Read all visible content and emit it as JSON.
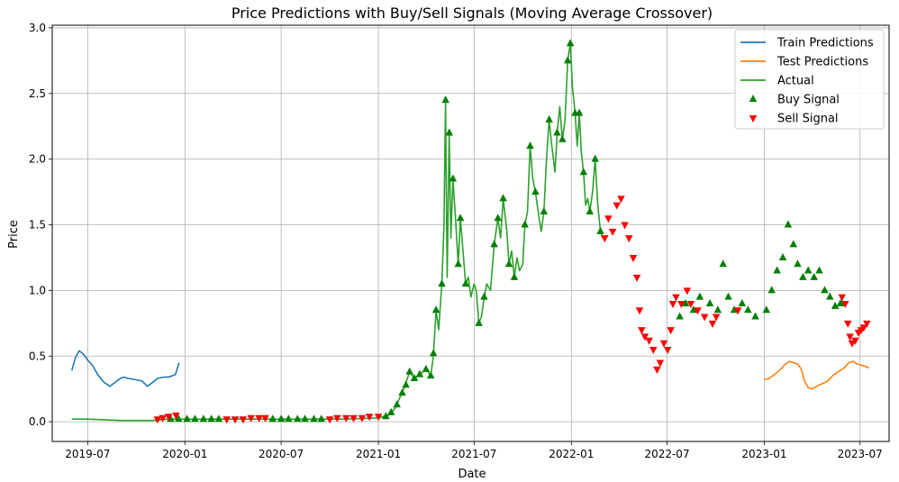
{
  "chart_data": {
    "type": "line",
    "title": "Price Predictions with Buy/Sell Signals (Moving Average Crossover)",
    "xlabel": "Date",
    "ylabel": "Price",
    "xlim": [
      "2019-04-25",
      "2023-08-25"
    ],
    "ylim": [
      -0.15,
      3.02
    ],
    "x_ticks": [
      "2019-07",
      "2020-01",
      "2020-07",
      "2021-01",
      "2021-07",
      "2022-01",
      "2022-07",
      "2023-01",
      "2023-07"
    ],
    "y_ticks": [
      "0.0",
      "0.5",
      "1.0",
      "1.5",
      "2.0",
      "2.5",
      "3.0"
    ],
    "grid": true,
    "legend_position": "top-right",
    "series": [
      {
        "name": "Train Predictions",
        "color": "#1f77b4",
        "points": [
          [
            "2019-06-01",
            0.39
          ],
          [
            "2019-06-08",
            0.49
          ],
          [
            "2019-06-15",
            0.54
          ],
          [
            "2019-06-22",
            0.52
          ],
          [
            "2019-07-01",
            0.47
          ],
          [
            "2019-07-10",
            0.43
          ],
          [
            "2019-07-20",
            0.36
          ],
          [
            "2019-08-01",
            0.3
          ],
          [
            "2019-08-12",
            0.27
          ],
          [
            "2019-08-22",
            0.3
          ],
          [
            "2019-09-01",
            0.33
          ],
          [
            "2019-09-08",
            0.34
          ],
          [
            "2019-09-15",
            0.33
          ],
          [
            "2019-10-01",
            0.32
          ],
          [
            "2019-10-12",
            0.31
          ],
          [
            "2019-10-22",
            0.27
          ],
          [
            "2019-11-01",
            0.3
          ],
          [
            "2019-11-10",
            0.33
          ],
          [
            "2019-11-22",
            0.34
          ],
          [
            "2019-12-01",
            0.34
          ],
          [
            "2019-12-08",
            0.35
          ],
          [
            "2019-12-14",
            0.36
          ],
          [
            "2019-12-21",
            0.45
          ]
        ]
      },
      {
        "name": "Test Predictions",
        "color": "#ff7f0e",
        "points": [
          [
            "2023-01-01",
            0.32
          ],
          [
            "2023-01-10",
            0.33
          ],
          [
            "2023-01-20",
            0.36
          ],
          [
            "2023-02-01",
            0.4
          ],
          [
            "2023-02-10",
            0.44
          ],
          [
            "2023-02-18",
            0.46
          ],
          [
            "2023-02-25",
            0.45
          ],
          [
            "2023-03-05",
            0.44
          ],
          [
            "2023-03-12",
            0.4
          ],
          [
            "2023-03-18",
            0.31
          ],
          [
            "2023-03-25",
            0.26
          ],
          [
            "2023-04-01",
            0.25
          ],
          [
            "2023-04-10",
            0.27
          ],
          [
            "2023-04-20",
            0.29
          ],
          [
            "2023-05-01",
            0.31
          ],
          [
            "2023-05-10",
            0.35
          ],
          [
            "2023-05-20",
            0.38
          ],
          [
            "2023-06-01",
            0.41
          ],
          [
            "2023-06-10",
            0.45
          ],
          [
            "2023-06-18",
            0.46
          ],
          [
            "2023-06-25",
            0.44
          ],
          [
            "2023-07-05",
            0.43
          ],
          [
            "2023-07-12",
            0.42
          ],
          [
            "2023-07-18",
            0.41
          ]
        ]
      },
      {
        "name": "Actual",
        "color": "#2ca02c",
        "points": [
          [
            "2019-06-01",
            0.02
          ],
          [
            "2019-07-01",
            0.02
          ],
          [
            "2019-09-01",
            0.01
          ],
          [
            "2019-11-01",
            0.01
          ],
          [
            "2019-12-01",
            0.02
          ],
          [
            "2020-03-01",
            0.02
          ],
          [
            "2020-07-01",
            0.02
          ],
          [
            "2020-11-01",
            0.02
          ],
          [
            "2021-01-01",
            0.03
          ],
          [
            "2021-01-20",
            0.05
          ],
          [
            "2021-02-01",
            0.1
          ],
          [
            "2021-02-10",
            0.18
          ],
          [
            "2021-02-20",
            0.27
          ],
          [
            "2021-03-01",
            0.38
          ],
          [
            "2021-03-10",
            0.33
          ],
          [
            "2021-03-20",
            0.36
          ],
          [
            "2021-04-01",
            0.4
          ],
          [
            "2021-04-10",
            0.35
          ],
          [
            "2021-04-15",
            0.5
          ],
          [
            "2021-04-20",
            0.85
          ],
          [
            "2021-04-25",
            0.7
          ],
          [
            "2021-05-01",
            1.05
          ],
          [
            "2021-05-05",
            1.5
          ],
          [
            "2021-05-08",
            2.45
          ],
          [
            "2021-05-11",
            1.1
          ],
          [
            "2021-05-15",
            2.2
          ],
          [
            "2021-05-18",
            1.4
          ],
          [
            "2021-05-22",
            1.85
          ],
          [
            "2021-05-26",
            1.6
          ],
          [
            "2021-06-01",
            1.2
          ],
          [
            "2021-06-05",
            1.55
          ],
          [
            "2021-06-10",
            1.3
          ],
          [
            "2021-06-15",
            1.05
          ],
          [
            "2021-06-20",
            1.1
          ],
          [
            "2021-06-25",
            0.95
          ],
          [
            "2021-07-01",
            1.05
          ],
          [
            "2021-07-05",
            1.0
          ],
          [
            "2021-07-10",
            0.75
          ],
          [
            "2021-07-15",
            0.8
          ],
          [
            "2021-07-20",
            0.95
          ],
          [
            "2021-07-25",
            1.05
          ],
          [
            "2021-08-01",
            1.0
          ],
          [
            "2021-08-08",
            1.35
          ],
          [
            "2021-08-15",
            1.55
          ],
          [
            "2021-08-20",
            1.4
          ],
          [
            "2021-08-25",
            1.7
          ],
          [
            "2021-09-01",
            1.45
          ],
          [
            "2021-09-05",
            1.2
          ],
          [
            "2021-09-10",
            1.3
          ],
          [
            "2021-09-15",
            1.1
          ],
          [
            "2021-09-20",
            1.25
          ],
          [
            "2021-09-25",
            1.15
          ],
          [
            "2021-10-01",
            1.2
          ],
          [
            "2021-10-05",
            1.5
          ],
          [
            "2021-10-10",
            1.6
          ],
          [
            "2021-10-15",
            2.1
          ],
          [
            "2021-10-20",
            1.85
          ],
          [
            "2021-10-25",
            1.75
          ],
          [
            "2021-11-01",
            1.55
          ],
          [
            "2021-11-05",
            1.45
          ],
          [
            "2021-11-10",
            1.6
          ],
          [
            "2021-11-15",
            2.0
          ],
          [
            "2021-11-20",
            2.3
          ],
          [
            "2021-11-25",
            2.1
          ],
          [
            "2021-12-01",
            1.9
          ],
          [
            "2021-12-05",
            2.2
          ],
          [
            "2021-12-10",
            2.4
          ],
          [
            "2021-12-15",
            2.15
          ],
          [
            "2021-12-20",
            2.3
          ],
          [
            "2021-12-25",
            2.75
          ],
          [
            "2021-12-30",
            2.88
          ],
          [
            "2022-01-03",
            2.55
          ],
          [
            "2022-01-08",
            2.35
          ],
          [
            "2022-01-12",
            2.1
          ],
          [
            "2022-01-16",
            2.35
          ],
          [
            "2022-01-20",
            2.05
          ],
          [
            "2022-01-24",
            1.9
          ],
          [
            "2022-01-28",
            1.65
          ],
          [
            "2022-02-01",
            1.7
          ],
          [
            "2022-02-05",
            1.6
          ],
          [
            "2022-02-10",
            1.75
          ],
          [
            "2022-02-15",
            2.0
          ],
          [
            "2022-02-20",
            1.65
          ],
          [
            "2022-02-25",
            1.45
          ],
          [
            "2022-03-01",
            1.4
          ]
        ]
      }
    ],
    "markers": [
      {
        "name": "Buy Signal",
        "color": "#008000",
        "shape": "triangle-up",
        "points": [
          [
            "2019-12-05",
            0.02
          ],
          [
            "2019-12-20",
            0.02
          ],
          [
            "2020-01-05",
            0.02
          ],
          [
            "2020-01-20",
            0.02
          ],
          [
            "2020-02-05",
            0.02
          ],
          [
            "2020-02-20",
            0.02
          ],
          [
            "2020-03-05",
            0.02
          ],
          [
            "2020-06-15",
            0.02
          ],
          [
            "2020-07-01",
            0.02
          ],
          [
            "2020-07-15",
            0.02
          ],
          [
            "2020-08-01",
            0.02
          ],
          [
            "2020-08-15",
            0.02
          ],
          [
            "2020-09-01",
            0.02
          ],
          [
            "2020-09-15",
            0.02
          ],
          [
            "2021-01-15",
            0.04
          ],
          [
            "2021-01-25",
            0.07
          ],
          [
            "2021-02-05",
            0.13
          ],
          [
            "2021-02-15",
            0.22
          ],
          [
            "2021-02-22",
            0.28
          ],
          [
            "2021-03-01",
            0.38
          ],
          [
            "2021-03-10",
            0.33
          ],
          [
            "2021-03-20",
            0.36
          ],
          [
            "2021-04-01",
            0.4
          ],
          [
            "2021-04-10",
            0.35
          ],
          [
            "2021-04-15",
            0.52
          ],
          [
            "2021-04-20",
            0.85
          ],
          [
            "2021-05-01",
            1.05
          ],
          [
            "2021-05-08",
            2.45
          ],
          [
            "2021-05-15",
            2.2
          ],
          [
            "2021-05-22",
            1.85
          ],
          [
            "2021-06-01",
            1.2
          ],
          [
            "2021-06-05",
            1.55
          ],
          [
            "2021-06-15",
            1.05
          ],
          [
            "2021-07-10",
            0.75
          ],
          [
            "2021-07-20",
            0.95
          ],
          [
            "2021-08-08",
            1.35
          ],
          [
            "2021-08-15",
            1.55
          ],
          [
            "2021-08-25",
            1.7
          ],
          [
            "2021-09-05",
            1.2
          ],
          [
            "2021-09-15",
            1.1
          ],
          [
            "2021-10-05",
            1.5
          ],
          [
            "2021-10-15",
            2.1
          ],
          [
            "2021-10-25",
            1.75
          ],
          [
            "2021-11-10",
            1.6
          ],
          [
            "2021-11-20",
            2.3
          ],
          [
            "2021-12-05",
            2.2
          ],
          [
            "2021-12-15",
            2.15
          ],
          [
            "2021-12-25",
            2.75
          ],
          [
            "2021-12-30",
            2.88
          ],
          [
            "2022-01-08",
            2.35
          ],
          [
            "2022-01-16",
            2.35
          ],
          [
            "2022-01-24",
            1.9
          ],
          [
            "2022-02-05",
            1.6
          ],
          [
            "2022-02-15",
            2.0
          ],
          [
            "2022-02-25",
            1.45
          ],
          [
            "2022-07-25",
            0.8
          ],
          [
            "2022-08-05",
            0.9
          ],
          [
            "2022-08-20",
            0.85
          ],
          [
            "2022-09-01",
            0.95
          ],
          [
            "2022-09-20",
            0.9
          ],
          [
            "2022-10-05",
            0.85
          ],
          [
            "2022-10-15",
            1.2
          ],
          [
            "2022-10-25",
            0.95
          ],
          [
            "2022-11-05",
            0.85
          ],
          [
            "2022-11-20",
            0.9
          ],
          [
            "2022-12-01",
            0.85
          ],
          [
            "2022-12-15",
            0.8
          ],
          [
            "2023-01-05",
            0.85
          ],
          [
            "2023-01-15",
            1.0
          ],
          [
            "2023-01-25",
            1.15
          ],
          [
            "2023-02-05",
            1.25
          ],
          [
            "2023-02-15",
            1.5
          ],
          [
            "2023-02-25",
            1.35
          ],
          [
            "2023-03-05",
            1.2
          ],
          [
            "2023-03-15",
            1.1
          ],
          [
            "2023-03-25",
            1.15
          ],
          [
            "2023-04-05",
            1.1
          ],
          [
            "2023-04-15",
            1.15
          ],
          [
            "2023-04-25",
            1.0
          ],
          [
            "2023-05-05",
            0.95
          ],
          [
            "2023-05-15",
            0.88
          ],
          [
            "2023-05-25",
            0.9
          ]
        ]
      },
      {
        "name": "Sell Signal",
        "color": "#ff0000",
        "shape": "triangle-down",
        "points": [
          [
            "2019-11-10",
            0.02
          ],
          [
            "2019-11-20",
            0.03
          ],
          [
            "2019-12-01",
            0.04
          ],
          [
            "2019-12-15",
            0.05
          ],
          [
            "2020-03-20",
            0.02
          ],
          [
            "2020-04-05",
            0.02
          ],
          [
            "2020-04-20",
            0.02
          ],
          [
            "2020-05-05",
            0.03
          ],
          [
            "2020-05-20",
            0.03
          ],
          [
            "2020-06-01",
            0.03
          ],
          [
            "2020-10-01",
            0.02
          ],
          [
            "2020-10-15",
            0.03
          ],
          [
            "2020-11-01",
            0.03
          ],
          [
            "2020-11-15",
            0.03
          ],
          [
            "2020-12-01",
            0.03
          ],
          [
            "2020-12-15",
            0.04
          ],
          [
            "2021-01-01",
            0.04
          ],
          [
            "2022-03-05",
            1.4
          ],
          [
            "2022-03-12",
            1.55
          ],
          [
            "2022-03-20",
            1.45
          ],
          [
            "2022-03-28",
            1.65
          ],
          [
            "2022-04-05",
            1.7
          ],
          [
            "2022-04-12",
            1.5
          ],
          [
            "2022-04-20",
            1.4
          ],
          [
            "2022-04-28",
            1.25
          ],
          [
            "2022-05-05",
            1.1
          ],
          [
            "2022-05-10",
            0.85
          ],
          [
            "2022-05-14",
            0.7
          ],
          [
            "2022-05-20",
            0.65
          ],
          [
            "2022-05-28",
            0.62
          ],
          [
            "2022-06-05",
            0.55
          ],
          [
            "2022-06-12",
            0.4
          ],
          [
            "2022-06-18",
            0.45
          ],
          [
            "2022-06-25",
            0.6
          ],
          [
            "2022-07-02",
            0.55
          ],
          [
            "2022-07-08",
            0.7
          ],
          [
            "2022-07-12",
            0.9
          ],
          [
            "2022-07-18",
            0.95
          ],
          [
            "2022-07-28",
            0.9
          ],
          [
            "2022-08-08",
            1.0
          ],
          [
            "2022-08-15",
            0.9
          ],
          [
            "2022-08-28",
            0.85
          ],
          [
            "2022-09-10",
            0.8
          ],
          [
            "2022-09-25",
            0.75
          ],
          [
            "2022-10-02",
            0.8
          ],
          [
            "2022-11-12",
            0.85
          ],
          [
            "2023-05-28",
            0.95
          ],
          [
            "2023-06-03",
            0.9
          ],
          [
            "2023-06-08",
            0.75
          ],
          [
            "2023-06-12",
            0.65
          ],
          [
            "2023-06-16",
            0.6
          ],
          [
            "2023-06-22",
            0.62
          ],
          [
            "2023-06-28",
            0.68
          ],
          [
            "2023-07-03",
            0.7
          ],
          [
            "2023-07-08",
            0.72
          ],
          [
            "2023-07-14",
            0.75
          ]
        ]
      }
    ]
  }
}
